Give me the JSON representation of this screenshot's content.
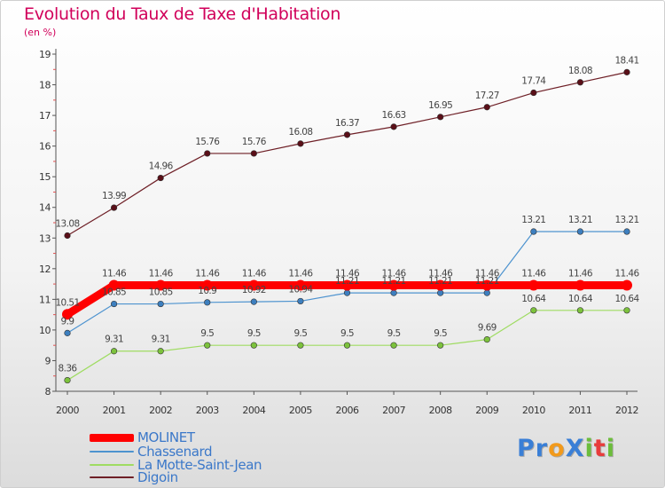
{
  "title": "Evolution du Taux de Taxe d'Habitation",
  "unit_label": "(en %)",
  "logo": {
    "text": "Proxiti",
    "letters": [
      {
        "ch": "P",
        "color": "#3a7fd6"
      },
      {
        "ch": "r",
        "color": "#3a7fd6"
      },
      {
        "ch": "o",
        "color": "#f29a1b"
      },
      {
        "ch": "X",
        "color": "#3a7fd6"
      },
      {
        "ch": "i",
        "color": "#6cbd3c"
      },
      {
        "ch": "t",
        "color": "#e83c3c"
      },
      {
        "ch": "i",
        "color": "#6cbd3c"
      }
    ]
  },
  "legend": [
    {
      "label": "MOLINET",
      "color": "#ff0000",
      "weight": "thick"
    },
    {
      "label": "Chassenard",
      "color": "#4d93cf",
      "weight": "thin"
    },
    {
      "label": "La Motte-Saint-Jean",
      "color": "#9fdc62",
      "weight": "thin"
    },
    {
      "label": "Digoin",
      "color": "#6e1f26",
      "weight": "thin"
    }
  ],
  "chart_data": {
    "type": "line",
    "title": "Evolution du Taux de Taxe d'Habitation",
    "ylabel": "(en %)",
    "xlabel": "",
    "x": [
      2000,
      2001,
      2002,
      2003,
      2004,
      2005,
      2006,
      2007,
      2008,
      2009,
      2010,
      2011,
      2012
    ],
    "ylim": [
      8,
      19
    ],
    "yticks": [
      8,
      9,
      10,
      11,
      12,
      13,
      14,
      15,
      16,
      17,
      18,
      19
    ],
    "grid": false,
    "legend_position": "bottom-left",
    "series": [
      {
        "name": "Digoin",
        "color": "#6e1f26",
        "marker": "#5a0f18",
        "width": 1.2,
        "values": [
          13.08,
          13.99,
          14.96,
          15.76,
          15.76,
          16.08,
          16.37,
          16.63,
          16.95,
          17.27,
          17.74,
          18.08,
          18.41
        ],
        "labels": [
          "13.08",
          "13.99",
          "14.96",
          "15.76",
          "15.76",
          "16.08",
          "16.37",
          "16.63",
          "16.95",
          "17.27",
          "17.74",
          "18.08",
          "18.41"
        ]
      },
      {
        "name": "La Motte-Saint-Jean",
        "color": "#9fdc62",
        "marker": "#7cc23c",
        "width": 1.2,
        "values": [
          8.36,
          9.31,
          9.31,
          9.5,
          9.5,
          9.5,
          9.5,
          9.5,
          9.5,
          9.69,
          10.64,
          10.64,
          10.64
        ],
        "labels": [
          "8.36",
          "9.31",
          "9.31",
          "9.5",
          "9.5",
          "9.5",
          "9.5",
          "9.5",
          "9.5",
          "9.69",
          "10.64",
          "10.64",
          "10.64"
        ]
      },
      {
        "name": "Chassenard",
        "color": "#4d93cf",
        "marker": "#3d7fbf",
        "width": 1.2,
        "values": [
          9.9,
          10.85,
          10.85,
          10.9,
          10.92,
          10.94,
          11.21,
          11.21,
          11.21,
          11.21,
          13.21,
          13.21,
          13.21
        ],
        "labels": [
          "9.9",
          "10.85",
          "10.85",
          "10.9",
          "10.92",
          "10.94",
          "11.21",
          "11.21",
          "11.21",
          "11.21",
          "13.21",
          "13.21",
          "13.21"
        ]
      },
      {
        "name": "MOLINET",
        "color": "#ff0000",
        "marker": "#ff0000",
        "width": 9,
        "values": [
          10.51,
          11.46,
          11.46,
          11.46,
          11.46,
          11.46,
          11.46,
          11.46,
          11.46,
          11.46,
          11.46,
          11.46,
          11.46
        ],
        "labels": [
          "10.51",
          "11.46",
          "11.46",
          "11.46",
          "11.46",
          "11.46",
          "11.46",
          "11.46",
          "11.46",
          "11.46",
          "11.46",
          "11.46",
          "11.46"
        ]
      }
    ]
  }
}
